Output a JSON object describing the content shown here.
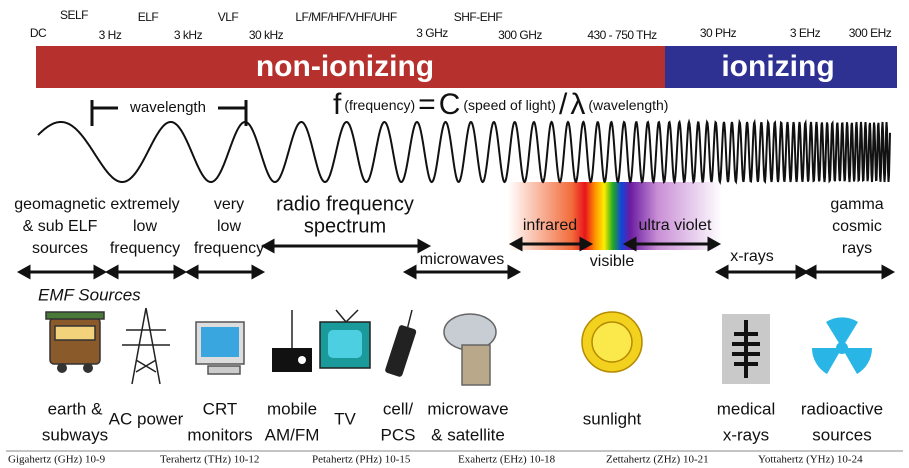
{
  "frequency_labels": [
    "DC",
    "SELF",
    "3 Hz",
    "ELF",
    "3 kHz",
    "VLF",
    "30 kHz",
    "LF/MF/HF/VHF/UHF",
    "3 GHz",
    "SHF-EHF",
    "300 GHz",
    "430 - 750 THz",
    "30 PHz",
    "3 EHz",
    "300 EHz"
  ],
  "ionization": [
    "non-ionizing",
    "ionizing"
  ],
  "wavelength_label": "wavelength",
  "formula": {
    "f": "f",
    "frequency": "(frequency)",
    "equals": "=",
    "c": "C",
    "speed": "(speed of light)",
    "slash": "/",
    "lambda": "λ",
    "wavelength": "(wavelength)"
  },
  "bands": [
    {
      "lines": [
        "geomagnetic",
        "& sub ELF",
        "sources"
      ]
    },
    {
      "lines": [
        "extremely",
        "low",
        "frequency"
      ]
    },
    {
      "lines": [
        "very",
        "low",
        "frequency"
      ]
    },
    {
      "lines": [
        "radio frequency",
        "spectrum"
      ]
    },
    {
      "lines": [
        "microwaves"
      ]
    },
    {
      "lines": [
        "infrared"
      ]
    },
    {
      "lines": [
        "visible"
      ]
    },
    {
      "lines": [
        "ultra violet"
      ]
    },
    {
      "lines": [
        "x-rays"
      ]
    },
    {
      "lines": [
        "gamma",
        "cosmic",
        "rays"
      ]
    }
  ],
  "emf_sources_title": "EMF Sources",
  "sources": [
    {
      "lines": [
        "earth &",
        "subways"
      ]
    },
    {
      "lines": [
        "AC power"
      ]
    },
    {
      "lines": [
        "CRT",
        "monitors"
      ]
    },
    {
      "lines": [
        "mobile",
        "AM/FM"
      ]
    },
    {
      "lines": [
        "TV"
      ]
    },
    {
      "lines": [
        "cell/",
        "PCS"
      ]
    },
    {
      "lines": [
        "microwave",
        "& satellite"
      ]
    },
    {
      "lines": [
        "sunlight"
      ]
    },
    {
      "lines": [
        "medical",
        "x-rays"
      ]
    },
    {
      "lines": [
        "radioactive",
        "sources"
      ]
    }
  ],
  "footer": [
    "Gigahertz (GHz) 10-9",
    "Terahertz (THz) 10-12",
    "Petahertz (PHz) 10-15",
    "Exahertz (EHz) 10-18",
    "Zettahertz (ZHz) 10-21",
    "Yottahertz (YHz) 10-24"
  ]
}
